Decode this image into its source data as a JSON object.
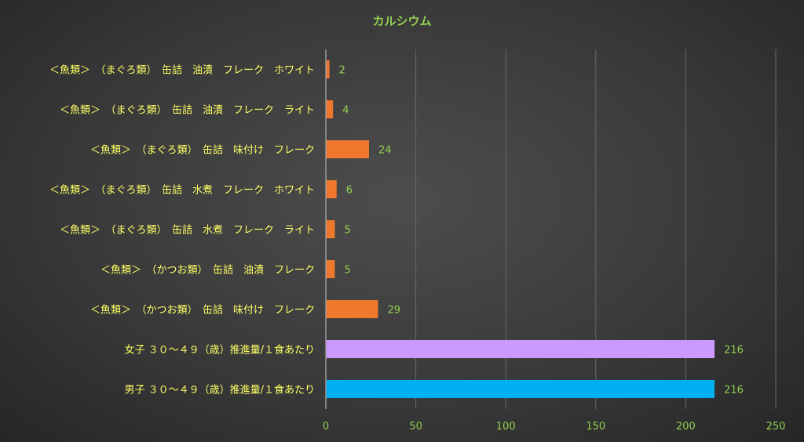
{
  "chart_data": {
    "type": "bar",
    "orientation": "horizontal",
    "title": "カルシウム",
    "categories": [
      "＜魚類＞　（まぐろ類）　缶詰　油漬　フレーク　ホワイト",
      "＜魚類＞　（まぐろ類）　缶詰　油漬　フレーク　ライト",
      "＜魚類＞　（まぐろ類）　缶詰　味付け　フレーク",
      "＜魚類＞　（まぐろ類）　缶詰　水煮　フレーク　ホワイト",
      "＜魚類＞　（まぐろ類）　缶詰　水煮　フレーク　ライト",
      "＜魚類＞　（かつお類）　缶詰　油漬　フレーク",
      "＜魚類＞　（かつお類）　缶詰　味付け　フレーク",
      "女子 ３０～４９（歳）推進量/１食あたり",
      "男子 ３０～４９（歳）推進量/１食あたり"
    ],
    "values": [
      2,
      4,
      24,
      6,
      5,
      5,
      29,
      216,
      216
    ],
    "data_labels": [
      "2",
      "4",
      "24",
      "6",
      "5",
      "5",
      "29",
      "216",
      "216"
    ],
    "bar_colors": [
      "#f0782d",
      "#f0782d",
      "#f0782d",
      "#f0782d",
      "#f0782d",
      "#f0782d",
      "#f0782d",
      "#cc99ff",
      "#00b0f0"
    ],
    "xlim": [
      0,
      250
    ],
    "xticks": [
      "0",
      "50",
      "100",
      "150",
      "200",
      "250"
    ],
    "xtick_values": [
      0,
      50,
      100,
      150,
      200,
      250
    ],
    "grid": true,
    "xlabel": "",
    "ylabel": ""
  },
  "colors": {
    "title": "#92d050",
    "category_text": "#ffff66",
    "value_text": "#92d050",
    "gridline": "#6a6a6a",
    "axis": "#9a9a9a"
  }
}
